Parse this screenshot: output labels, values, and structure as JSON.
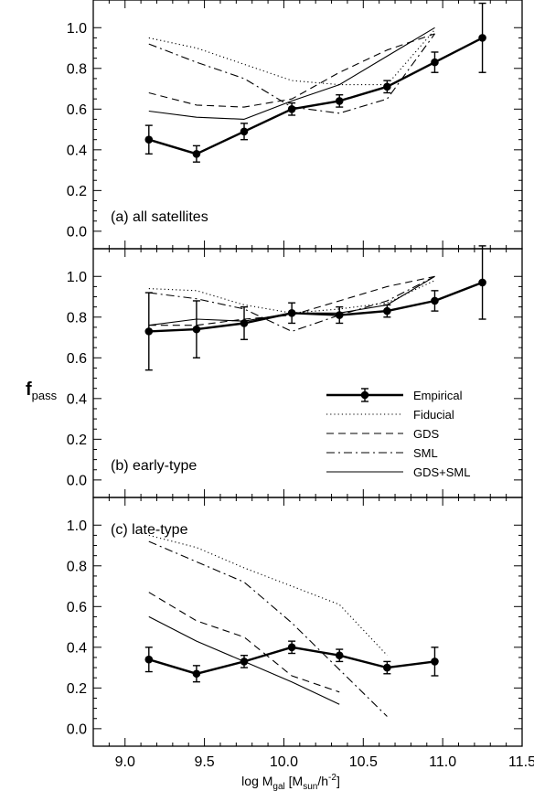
{
  "chart_data": {
    "type": "line",
    "ylabel": "f",
    "ylabel_sub": "pass",
    "xlabel_parts": [
      "log M",
      "gal",
      " [M",
      "sun",
      "/h",
      "-2",
      "]"
    ],
    "xlim": [
      8.8,
      11.5
    ],
    "ylim": [
      -0.05,
      1.1
    ],
    "x_ticks": [
      "9.0",
      "9.5",
      "10.0",
      "10.5",
      "11.0",
      "11.5"
    ],
    "x_tick_values": [
      9.0,
      9.5,
      10.0,
      10.5,
      11.0,
      11.5
    ],
    "y_ticks": [
      "0.0",
      "0.2",
      "0.4",
      "0.6",
      "0.8",
      "1.0"
    ],
    "y_tick_values": [
      0.0,
      0.2,
      0.4,
      0.6,
      0.8,
      1.0
    ],
    "legend": {
      "placement": "lower-right of panel (b)",
      "entries": [
        {
          "name": "Empirical",
          "style": "thick-solid-points"
        },
        {
          "name": "Fiducial",
          "style": "dotted"
        },
        {
          "name": "GDS",
          "style": "dashed"
        },
        {
          "name": "SML",
          "style": "dashdot"
        },
        {
          "name": "GDS+SML",
          "style": "solid"
        }
      ]
    },
    "panels": [
      {
        "label": "(a) all satellites",
        "empirical": {
          "x": [
            9.15,
            9.45,
            9.75,
            10.05,
            10.35,
            10.65,
            10.95,
            11.25
          ],
          "y": [
            0.45,
            0.38,
            0.49,
            0.6,
            0.64,
            0.71,
            0.83,
            0.95
          ],
          "err": [
            0.07,
            0.04,
            0.04,
            0.03,
            0.03,
            0.03,
            0.05,
            0.17
          ]
        },
        "models": [
          {
            "name": "Fiducial",
            "style": "dotted",
            "x": [
              9.15,
              9.45,
              9.75,
              10.05,
              10.35,
              10.65,
              10.95
            ],
            "y": [
              0.95,
              0.9,
              0.82,
              0.74,
              0.72,
              0.72,
              0.99
            ]
          },
          {
            "name": "GDS",
            "style": "dashed",
            "x": [
              9.15,
              9.45,
              9.75,
              10.05,
              10.35,
              10.65,
              10.95
            ],
            "y": [
              0.68,
              0.62,
              0.61,
              0.65,
              0.78,
              0.89,
              0.97
            ]
          },
          {
            "name": "SML",
            "style": "dashdot",
            "x": [
              9.15,
              9.45,
              9.75,
              10.05,
              10.35,
              10.65,
              10.95
            ],
            "y": [
              0.92,
              0.83,
              0.75,
              0.61,
              0.58,
              0.65,
              0.97
            ]
          },
          {
            "name": "GDS+SML",
            "style": "solid",
            "x": [
              9.15,
              9.45,
              9.75,
              10.05,
              10.35,
              10.65,
              10.95
            ],
            "y": [
              0.59,
              0.56,
              0.55,
              0.64,
              0.72,
              0.86,
              1.0
            ]
          }
        ]
      },
      {
        "label": "(b) early-type",
        "empirical": {
          "x": [
            9.15,
            9.45,
            9.75,
            10.05,
            10.35,
            10.65,
            10.95,
            11.25
          ],
          "y": [
            0.73,
            0.74,
            0.77,
            0.82,
            0.81,
            0.83,
            0.88,
            0.97
          ],
          "err": [
            0.19,
            0.14,
            0.08,
            0.05,
            0.04,
            0.03,
            0.05,
            0.18
          ]
        },
        "models": [
          {
            "name": "Fiducial",
            "style": "dotted",
            "x": [
              9.15,
              9.45,
              9.75,
              10.05,
              10.35,
              10.65,
              10.95
            ],
            "y": [
              0.94,
              0.93,
              0.86,
              0.82,
              0.84,
              0.87,
              0.98
            ]
          },
          {
            "name": "GDS",
            "style": "dashed",
            "x": [
              9.15,
              9.45,
              9.75,
              10.05,
              10.35,
              10.65,
              10.95
            ],
            "y": [
              0.76,
              0.76,
              0.79,
              0.81,
              0.88,
              0.95,
              1.0
            ]
          },
          {
            "name": "SML",
            "style": "dashdot",
            "x": [
              9.15,
              9.45,
              9.75,
              10.05,
              10.35,
              10.65,
              10.95
            ],
            "y": [
              0.92,
              0.89,
              0.84,
              0.73,
              0.81,
              0.88,
              1.0
            ]
          },
          {
            "name": "GDS+SML",
            "style": "solid",
            "x": [
              9.15,
              9.45,
              9.75,
              10.05,
              10.35,
              10.65,
              10.95
            ],
            "y": [
              0.76,
              0.79,
              0.78,
              0.82,
              0.82,
              0.86,
              1.0
            ]
          }
        ]
      },
      {
        "label": "(c) late-type",
        "empirical": {
          "x": [
            9.15,
            9.45,
            9.75,
            10.05,
            10.35,
            10.65,
            10.95
          ],
          "y": [
            0.34,
            0.27,
            0.33,
            0.4,
            0.36,
            0.3,
            0.33
          ],
          "err": [
            0.06,
            0.04,
            0.03,
            0.03,
            0.03,
            0.03,
            0.07
          ]
        },
        "models": [
          {
            "name": "Fiducial",
            "style": "dotted",
            "x": [
              9.15,
              9.45,
              9.75,
              10.05,
              10.35,
              10.65
            ],
            "y": [
              0.95,
              0.89,
              0.79,
              0.7,
              0.61,
              0.36
            ]
          },
          {
            "name": "GDS",
            "style": "dashed",
            "x": [
              9.15,
              9.45,
              9.75,
              10.05,
              10.35
            ],
            "y": [
              0.67,
              0.53,
              0.45,
              0.26,
              0.18
            ]
          },
          {
            "name": "SML",
            "style": "dashdot",
            "x": [
              9.15,
              9.45,
              9.75,
              10.05,
              10.35,
              10.65
            ],
            "y": [
              0.92,
              0.82,
              0.72,
              0.52,
              0.29,
              0.06
            ]
          },
          {
            "name": "GDS+SML",
            "style": "solid",
            "x": [
              9.15,
              9.45,
              9.75,
              10.05,
              10.35
            ],
            "y": [
              0.55,
              0.43,
              0.33,
              0.23,
              0.12
            ]
          }
        ]
      }
    ]
  }
}
